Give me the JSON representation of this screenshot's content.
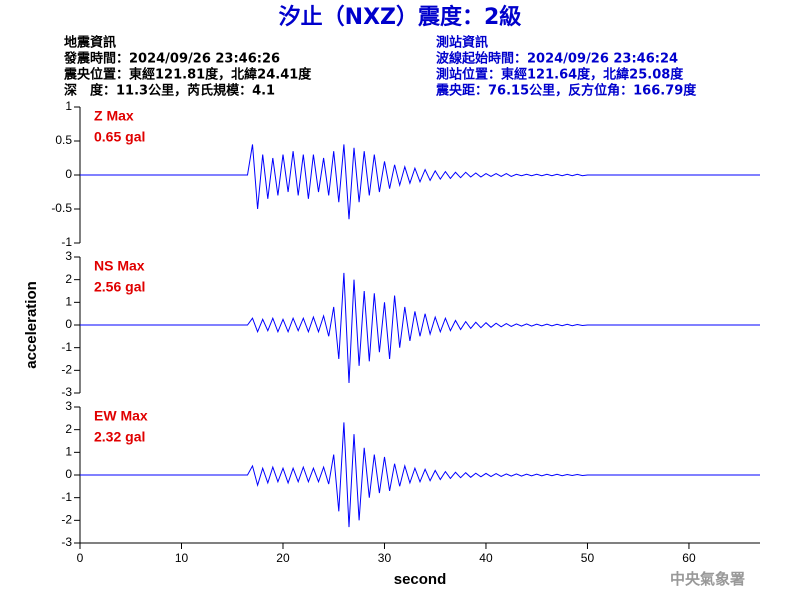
{
  "title": "汐止（NXZ）震度：2級",
  "event_info": {
    "heading": "地震資訊",
    "lines": [
      "發震時間：2024/09/26 23:46:26",
      "震央位置：東經121.81度，北緯24.41度",
      "深　度：11.3公里，芮氏規模：4.1"
    ]
  },
  "station_info": {
    "heading": "測站資訊",
    "lines": [
      "波線起始時間：2024/09/26 23:46:24",
      "測站位置：東經121.64度，北緯25.08度",
      "震央距：76.15公里，反方位角：166.79度"
    ]
  },
  "footer": "中央氣象署",
  "chart_data": [
    {
      "type": "line",
      "annotations": [
        "Z Max",
        "0.65 gal"
      ],
      "color": "#0000ff",
      "xlim": [
        0,
        67
      ],
      "ylim": [
        -1,
        1
      ],
      "yticks": [
        -1,
        -0.5,
        0,
        0.5,
        1
      ],
      "x": [
        0,
        16.5,
        17,
        17.5,
        18,
        18.5,
        19,
        19.5,
        20,
        20.5,
        21,
        21.5,
        22,
        22.5,
        23,
        23.5,
        24,
        24.5,
        25,
        25.5,
        26,
        26.5,
        27,
        27.5,
        28,
        28.5,
        29,
        29.5,
        30,
        30.5,
        31,
        31.5,
        32,
        32.5,
        33,
        33.5,
        34,
        34.5,
        35,
        35.5,
        36,
        36.5,
        37,
        37.5,
        38,
        38.5,
        39,
        39.5,
        40,
        40.5,
        41,
        41.5,
        42,
        42.5,
        43,
        43.5,
        44,
        44.5,
        45,
        45.5,
        46,
        46.5,
        47,
        47.5,
        48,
        48.5,
        49,
        49.5,
        50,
        67
      ],
      "values": [
        0,
        0,
        0.45,
        -0.5,
        0.3,
        -0.35,
        0.25,
        -0.3,
        0.3,
        -0.25,
        0.35,
        -0.3,
        0.3,
        -0.35,
        0.3,
        -0.25,
        0.25,
        -0.3,
        0.35,
        -0.4,
        0.45,
        -0.65,
        0.4,
        -0.4,
        0.35,
        -0.3,
        0.3,
        -0.25,
        0.2,
        -0.2,
        0.15,
        -0.15,
        0.12,
        -0.12,
        0.1,
        -0.1,
        0.08,
        -0.08,
        0.06,
        -0.06,
        0.05,
        -0.05,
        0.04,
        -0.04,
        0.04,
        -0.03,
        0.03,
        -0.03,
        0.02,
        -0.02,
        0.02,
        -0.02,
        0.02,
        -0.02,
        0.01,
        -0.01,
        0.01,
        -0.01,
        0.01,
        -0.01,
        0.01,
        -0.01,
        0.01,
        -0.01,
        0.01,
        -0.01,
        0.01,
        -0.01,
        0,
        0
      ]
    },
    {
      "type": "line",
      "annotations": [
        "NS Max",
        "2.56 gal"
      ],
      "color": "#0000ff",
      "ylabel": "acceleration",
      "xlim": [
        0,
        67
      ],
      "ylim": [
        -3,
        3
      ],
      "yticks": [
        -3,
        -2,
        -1,
        0,
        1,
        2,
        3
      ],
      "x": [
        0,
        16.5,
        17,
        17.5,
        18,
        18.5,
        19,
        19.5,
        20,
        20.5,
        21,
        21.5,
        22,
        22.5,
        23,
        23.5,
        24,
        24.5,
        25,
        25.5,
        26,
        26.5,
        27,
        27.5,
        28,
        28.5,
        29,
        29.5,
        30,
        30.5,
        31,
        31.5,
        32,
        32.5,
        33,
        33.5,
        34,
        34.5,
        35,
        35.5,
        36,
        36.5,
        37,
        37.5,
        38,
        38.5,
        39,
        39.5,
        40,
        40.5,
        41,
        41.5,
        42,
        42.5,
        43,
        43.5,
        44,
        44.5,
        45,
        45.5,
        46,
        46.5,
        47,
        47.5,
        48,
        48.5,
        49,
        49.5,
        50,
        67
      ],
      "values": [
        0,
        0,
        0.3,
        -0.3,
        0.25,
        -0.25,
        0.3,
        -0.3,
        0.25,
        -0.3,
        0.3,
        -0.25,
        0.3,
        -0.3,
        0.35,
        -0.3,
        0.4,
        -0.5,
        0.8,
        -1.5,
        2.3,
        -2.56,
        2.0,
        -1.8,
        1.5,
        -1.6,
        1.4,
        -1.2,
        1.0,
        -1.5,
        1.3,
        -1.0,
        0.8,
        -0.7,
        0.6,
        -0.5,
        0.5,
        -0.4,
        0.35,
        -0.3,
        0.3,
        -0.25,
        0.2,
        -0.2,
        0.15,
        -0.15,
        0.12,
        -0.12,
        0.1,
        -0.1,
        0.08,
        -0.08,
        0.06,
        -0.06,
        0.05,
        -0.05,
        0.05,
        -0.05,
        0.04,
        -0.04,
        0.04,
        -0.04,
        0.03,
        -0.03,
        0.03,
        -0.03,
        0.02,
        -0.02,
        0,
        0
      ]
    },
    {
      "type": "line",
      "annotations": [
        "EW Max",
        "2.32 gal"
      ],
      "color": "#0000ff",
      "xlabel": "second",
      "xlim": [
        0,
        67
      ],
      "ylim": [
        -3,
        3
      ],
      "yticks": [
        -3,
        -2,
        -1,
        0,
        1,
        2,
        3
      ],
      "xticks": [
        0,
        10,
        20,
        30,
        40,
        50,
        60
      ],
      "x": [
        0,
        16.5,
        17,
        17.5,
        18,
        18.5,
        19,
        19.5,
        20,
        20.5,
        21,
        21.5,
        22,
        22.5,
        23,
        23.5,
        24,
        24.5,
        25,
        25.5,
        26,
        26.5,
        27,
        27.5,
        28,
        28.5,
        29,
        29.5,
        30,
        30.5,
        31,
        31.5,
        32,
        32.5,
        33,
        33.5,
        34,
        34.5,
        35,
        35.5,
        36,
        36.5,
        37,
        37.5,
        38,
        38.5,
        39,
        39.5,
        40,
        40.5,
        41,
        41.5,
        42,
        42.5,
        43,
        43.5,
        44,
        44.5,
        45,
        45.5,
        46,
        46.5,
        47,
        47.5,
        48,
        48.5,
        49,
        49.5,
        50,
        67
      ],
      "values": [
        0,
        0,
        0.4,
        -0.45,
        0.3,
        -0.35,
        0.35,
        -0.3,
        0.3,
        -0.35,
        0.3,
        -0.3,
        0.35,
        -0.3,
        0.3,
        -0.3,
        0.35,
        -0.4,
        0.9,
        -1.6,
        2.32,
        -2.3,
        1.8,
        -2.0,
        1.2,
        -1.0,
        0.9,
        -0.8,
        0.8,
        -0.7,
        0.5,
        -0.5,
        0.4,
        -0.35,
        0.3,
        -0.3,
        0.25,
        -0.25,
        0.2,
        -0.2,
        0.15,
        -0.15,
        0.12,
        -0.12,
        0.1,
        -0.1,
        0.08,
        -0.08,
        0.07,
        -0.07,
        0.06,
        -0.06,
        0.05,
        -0.05,
        0.05,
        -0.05,
        0.04,
        -0.04,
        0.04,
        -0.04,
        0.03,
        -0.03,
        0.03,
        -0.03,
        0.02,
        -0.02,
        0.02,
        -0.02,
        0,
        0
      ]
    }
  ]
}
